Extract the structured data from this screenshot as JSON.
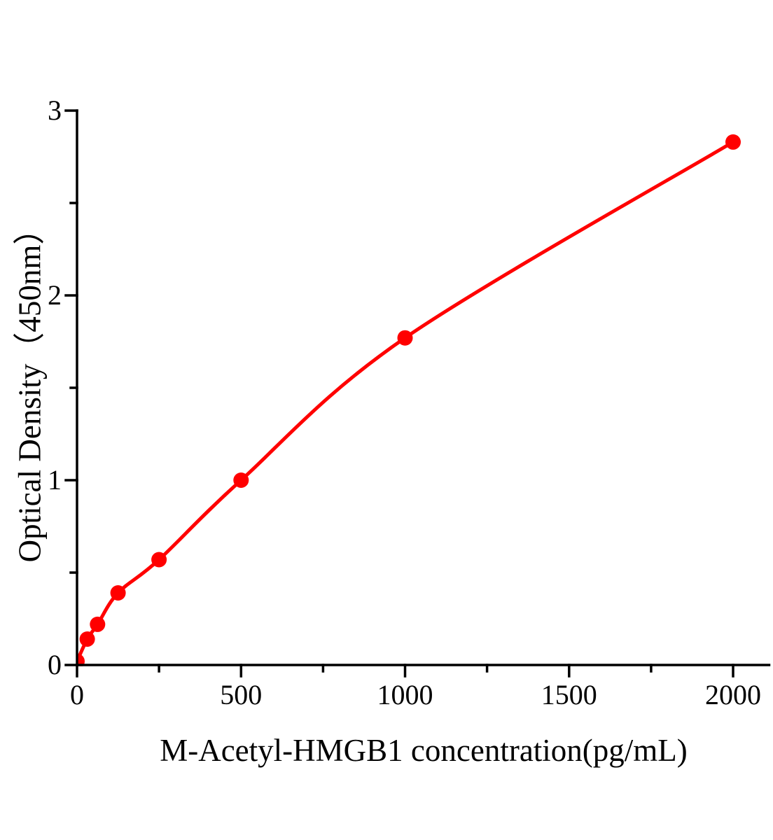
{
  "figure": {
    "background": "#ffffff",
    "axis_color": "#000000",
    "accent_color": "#ff0000"
  },
  "chart_data": {
    "type": "scatter",
    "title": "",
    "xlabel": "M-Acetyl-HMGB1 concentration(pg/mL)",
    "ylabel": "Optical Density（450nm）",
    "x": [
      0,
      31.25,
      62.5,
      125,
      250,
      500,
      1000,
      2000
    ],
    "y": [
      0.02,
      0.14,
      0.22,
      0.39,
      0.57,
      1.0,
      1.77,
      2.83
    ],
    "line": "smooth-fit-through-points",
    "marker": "filled-circle",
    "marker_color": "#ff0000",
    "line_color": "#ff0000",
    "xlim": [
      0,
      2110
    ],
    "ylim": [
      0,
      3
    ],
    "xticks_major": [
      0,
      500,
      1000,
      1500,
      2000
    ],
    "xticks_minor": [
      250,
      750,
      1250,
      1750
    ],
    "yticks_major": [
      0,
      1,
      2,
      3
    ],
    "yticks_minor": [
      0.5,
      1.5,
      2.5
    ],
    "grid": false,
    "legend": false
  }
}
